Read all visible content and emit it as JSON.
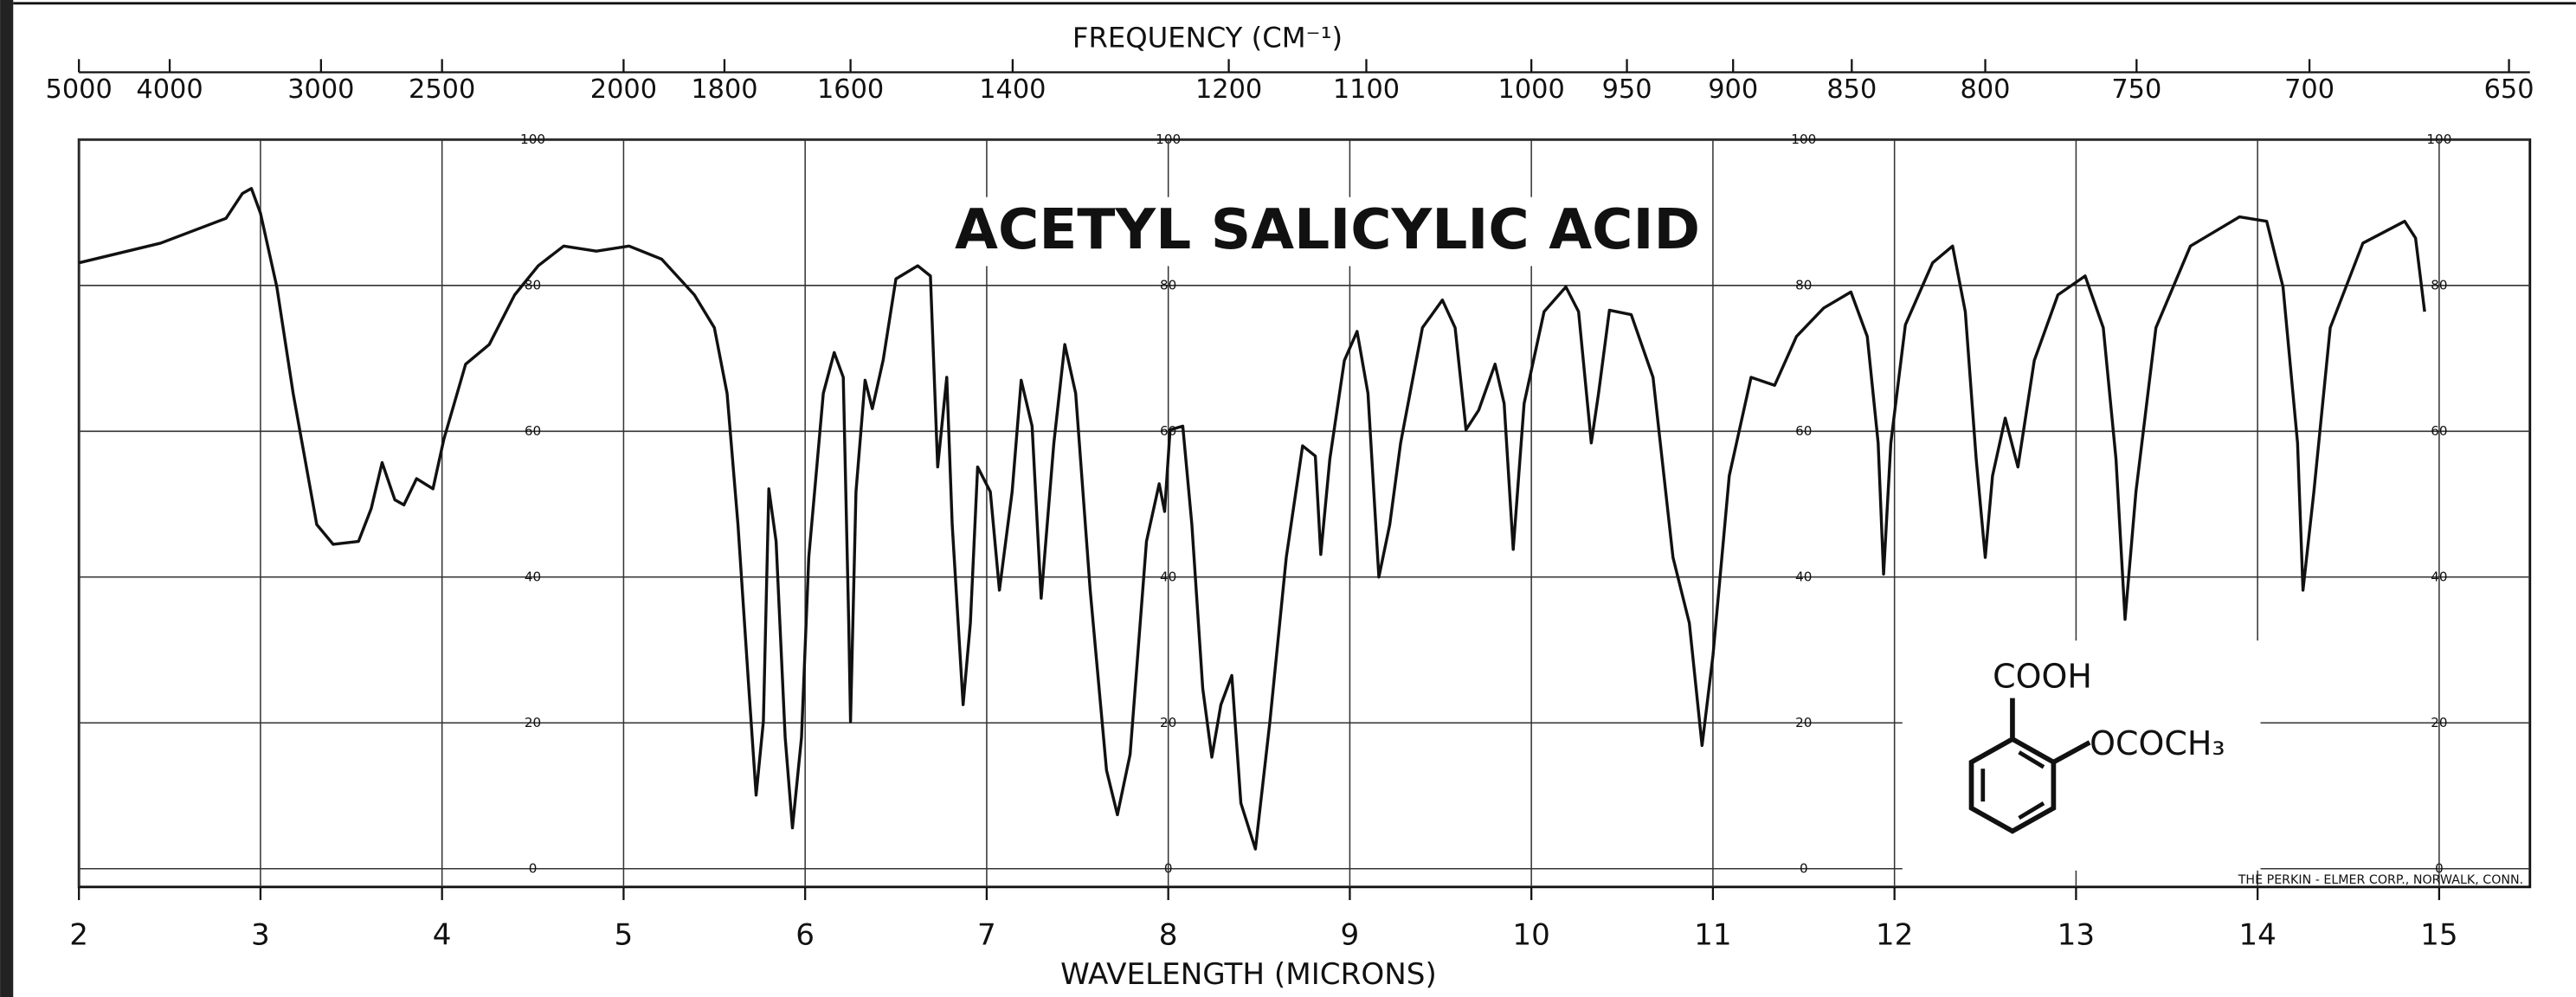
{
  "chart_data": {
    "type": "line",
    "title": "ACETYL SALICYLIC ACID",
    "x_label": "WAVELENGTH (MICRONS)",
    "x2_label": "FREQUENCY (CM⁻¹)",
    "annotations": [
      "COOH",
      "OCOCH₃"
    ],
    "note": "THE PERKIN - ELMER CORP., NORWALK, CONN.",
    "xlim": [
      2,
      15.5
    ],
    "ylim": [
      -2.5,
      100
    ],
    "xticks": [
      2,
      3,
      4,
      5,
      6,
      7,
      8,
      9,
      10,
      11,
      12,
      13,
      14,
      15
    ],
    "yticks": [
      0,
      20,
      40,
      60,
      80,
      100
    ],
    "x2ticks": [
      5000,
      4000,
      3000,
      2500,
      2000,
      1800,
      1600,
      1400,
      1200,
      1100,
      1000,
      950,
      900,
      850,
      800,
      750,
      700,
      650
    ],
    "grid": true,
    "color": "#111111",
    "x": [
      2.0,
      2.45,
      2.81,
      2.9,
      2.95,
      3.0,
      3.09,
      3.18,
      3.31,
      3.4,
      3.54,
      3.61,
      3.67,
      3.74,
      3.79,
      3.86,
      3.95,
      4.01,
      4.13,
      4.26,
      4.4,
      4.53,
      4.67,
      4.85,
      5.03,
      5.21,
      5.39,
      5.5,
      5.57,
      5.63,
      5.69,
      5.73,
      5.77,
      5.8,
      5.84,
      5.89,
      5.93,
      5.98,
      6.02,
      6.1,
      6.16,
      6.21,
      6.24,
      6.25,
      6.28,
      6.33,
      6.37,
      6.43,
      6.5,
      6.62,
      6.69,
      6.73,
      6.78,
      6.81,
      6.87,
      6.91,
      6.95,
      7.02,
      7.07,
      7.14,
      7.19,
      7.25,
      7.3,
      7.37,
      7.43,
      7.49,
      7.57,
      7.66,
      7.72,
      7.79,
      7.88,
      7.95,
      7.98,
      8.01,
      8.08,
      8.13,
      8.19,
      8.24,
      8.29,
      8.35,
      8.4,
      8.48,
      8.56,
      8.65,
      8.74,
      8.81,
      8.84,
      8.89,
      8.97,
      9.04,
      9.1,
      9.16,
      9.22,
      9.28,
      9.4,
      9.51,
      9.58,
      9.64,
      9.71,
      9.8,
      9.85,
      9.9,
      9.96,
      10.07,
      10.19,
      10.26,
      10.33,
      10.37,
      10.43,
      10.55,
      10.67,
      10.78,
      10.87,
      10.94,
      11.0,
      11.09,
      11.21,
      11.34,
      11.46,
      11.61,
      11.76,
      11.85,
      11.91,
      11.94,
      11.98,
      12.06,
      12.21,
      12.32,
      12.39,
      12.45,
      12.5,
      12.54,
      12.61,
      12.68,
      12.77,
      12.9,
      13.05,
      13.15,
      13.22,
      13.27,
      13.33,
      13.44,
      13.63,
      13.9,
      14.05,
      14.14,
      14.22,
      14.25,
      14.31,
      14.4,
      14.58,
      14.81,
      14.87,
      14.92
    ],
    "values": [
      83.1,
      85.8,
      89.2,
      92.6,
      93.3,
      89.9,
      79.8,
      65.2,
      47.2,
      44.5,
      44.9,
      49.4,
      55.7,
      50.6,
      49.9,
      53.5,
      52.1,
      58.9,
      69.2,
      71.9,
      78.7,
      82.7,
      85.4,
      84.7,
      85.4,
      83.6,
      78.7,
      74.2,
      65.2,
      47.2,
      24.7,
      10.1,
      20.2,
      52.1,
      44.9,
      18.0,
      5.6,
      18.0,
      42.7,
      65.2,
      70.8,
      67.4,
      33.7,
      20.2,
      51.7,
      67.0,
      63.1,
      69.8,
      80.9,
      82.7,
      81.3,
      55.1,
      67.4,
      47.2,
      22.5,
      33.7,
      55.1,
      51.7,
      38.2,
      51.7,
      67.0,
      60.7,
      37.1,
      58.4,
      71.9,
      65.2,
      38.2,
      13.5,
      7.4,
      15.7,
      44.9,
      52.8,
      49.0,
      60.2,
      60.7,
      47.2,
      24.7,
      15.3,
      22.5,
      26.5,
      9.0,
      2.7,
      20.2,
      42.7,
      58.0,
      56.6,
      43.1,
      56.2,
      69.7,
      73.7,
      65.2,
      40.0,
      47.2,
      58.4,
      74.2,
      78.0,
      74.2,
      60.2,
      62.9,
      69.2,
      63.8,
      43.8,
      63.8,
      76.4,
      79.8,
      76.4,
      58.4,
      65.2,
      76.6,
      76.0,
      67.4,
      42.7,
      33.7,
      16.9,
      29.2,
      53.9,
      67.4,
      66.3,
      73.0,
      76.9,
      79.1,
      73.0,
      58.4,
      40.4,
      58.4,
      74.6,
      83.1,
      85.4,
      76.4,
      56.2,
      42.7,
      53.9,
      61.8,
      55.1,
      69.7,
      78.7,
      81.3,
      74.2,
      56.2,
      34.2,
      51.7,
      74.2,
      85.4,
      89.4,
      88.8,
      79.8,
      58.4,
      38.2,
      51.7,
      74.2,
      85.8,
      88.8,
      86.5,
      76.4
    ]
  }
}
